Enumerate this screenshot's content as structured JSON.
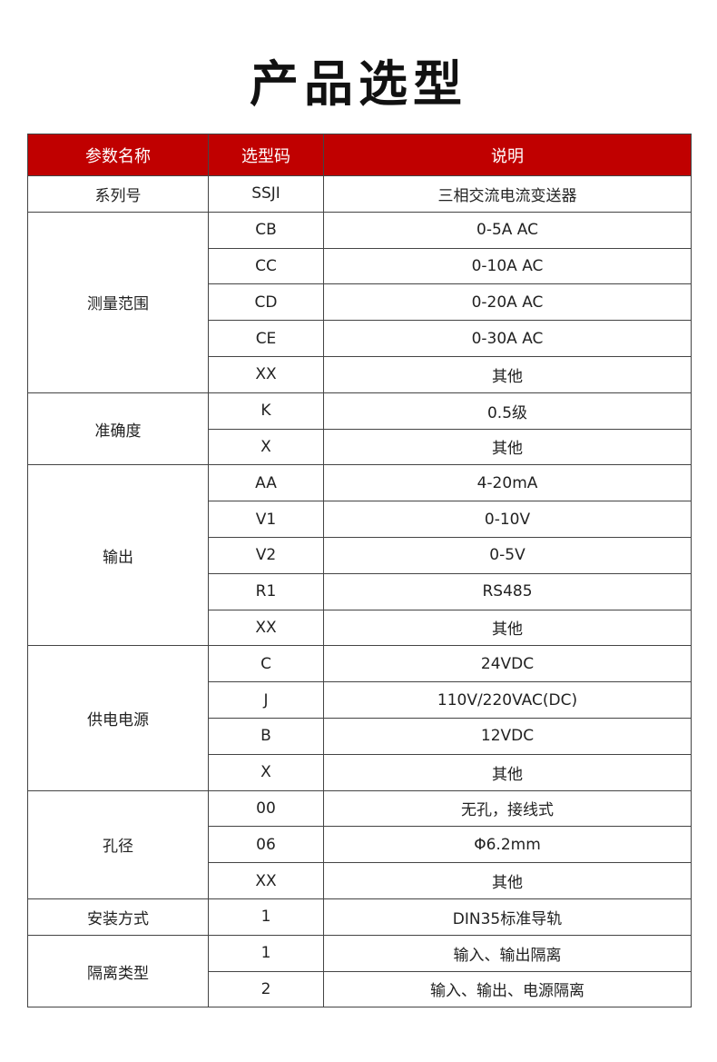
{
  "title": "产品选型",
  "header_color": "#c00000",
  "columns": [
    "参数名称",
    "选型码",
    "说明"
  ],
  "groups": [
    {
      "name": "系列号",
      "rows": [
        [
          "SSJI",
          "三相交流电流变送器"
        ]
      ]
    },
    {
      "name": "测量范围",
      "rows": [
        [
          "CB",
          "0-5A AC"
        ],
        [
          "CC",
          "0-10A AC"
        ],
        [
          "CD",
          "0-20A AC"
        ],
        [
          "CE",
          "0-30A AC"
        ],
        [
          "XX",
          "其他"
        ]
      ]
    },
    {
      "name": "准确度",
      "rows": [
        [
          "K",
          "0.5级"
        ],
        [
          "X",
          "其他"
        ]
      ]
    },
    {
      "name": "输出",
      "rows": [
        [
          "AA",
          "4-20mA"
        ],
        [
          "V1",
          "0-10V"
        ],
        [
          "V2",
          "0-5V"
        ],
        [
          "R1",
          "RS485"
        ],
        [
          "XX",
          "其他"
        ]
      ]
    },
    {
      "name": "供电电源",
      "rows": [
        [
          "C",
          "24VDC"
        ],
        [
          "J",
          "110V/220VAC(DC)"
        ],
        [
          "B",
          "12VDC"
        ],
        [
          "X",
          "其他"
        ]
      ]
    },
    {
      "name": "孔径",
      "rows": [
        [
          "00",
          "无孔，接线式"
        ],
        [
          "06",
          "Φ6.2mm"
        ],
        [
          "XX",
          "其他"
        ]
      ]
    },
    {
      "name": "安装方式",
      "rows": [
        [
          "1",
          "DIN35标准导轨"
        ]
      ]
    },
    {
      "name": "隔离类型",
      "rows": [
        [
          "1",
          "输入、输出隔离"
        ],
        [
          "2",
          "输入、输出、电源隔离"
        ]
      ]
    }
  ]
}
